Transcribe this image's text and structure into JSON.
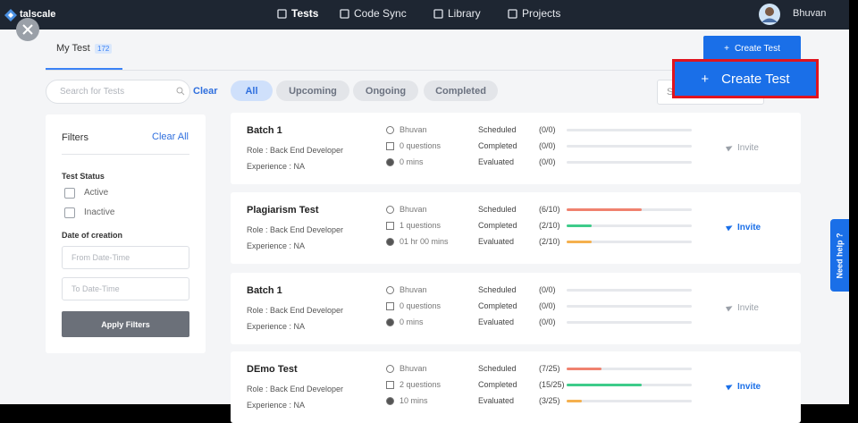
{
  "nav": {
    "brand": "talscale",
    "items": [
      "Tests",
      "Code Sync",
      "Library",
      "Projects"
    ],
    "user": "Bhuvan"
  },
  "tab": {
    "label": "My Test",
    "badge": "172"
  },
  "create_button": "Create Test",
  "highlight_button": "Create Test",
  "search": {
    "placeholder": "Search for Tests",
    "clear": "Clear"
  },
  "chips": [
    "All",
    "Upcoming",
    "Ongoing",
    "Completed"
  ],
  "sort_input": "S",
  "filters": {
    "title": "Filters",
    "clear_all": "Clear All",
    "status_title": "Test Status",
    "status_options": [
      "Active",
      "Inactive"
    ],
    "date_title": "Date of creation",
    "from_placeholder": "From Date-Time",
    "to_placeholder": "To Date-Time",
    "apply": "Apply Filters"
  },
  "tests": [
    {
      "name": "Batch 1",
      "role": "Role : Back End Developer",
      "experience": "Experience : NA",
      "owner": "Bhuvan",
      "questions": "0 questions",
      "duration": "0 mins",
      "stats": [
        {
          "name": "Scheduled",
          "label": "(0/0)",
          "count": 0,
          "total": 0
        },
        {
          "name": "Completed",
          "label": "(0/0)",
          "count": 0,
          "total": 0
        },
        {
          "name": "Evaluated",
          "label": "(0/0)",
          "count": 0,
          "total": 0
        }
      ],
      "invite": "Invite",
      "active": false
    },
    {
      "name": "Plagiarism Test",
      "role": "Role : Back End Developer",
      "experience": "Experience : NA",
      "owner": "Bhuvan",
      "questions": "1 questions",
      "duration": "01 hr 00 mins",
      "stats": [
        {
          "name": "Scheduled",
          "label": "(6/10)",
          "count": 6,
          "total": 10
        },
        {
          "name": "Completed",
          "label": "(2/10)",
          "count": 2,
          "total": 10
        },
        {
          "name": "Evaluated",
          "label": "(2/10)",
          "count": 2,
          "total": 10
        }
      ],
      "invite": "Invite",
      "active": true
    },
    {
      "name": "Batch 1",
      "role": "Role : Back End Developer",
      "experience": "Experience : NA",
      "owner": "Bhuvan",
      "questions": "0 questions",
      "duration": "0 mins",
      "stats": [
        {
          "name": "Scheduled",
          "label": "(0/0)",
          "count": 0,
          "total": 0
        },
        {
          "name": "Completed",
          "label": "(0/0)",
          "count": 0,
          "total": 0
        },
        {
          "name": "Evaluated",
          "label": "(0/0)",
          "count": 0,
          "total": 0
        }
      ],
      "invite": "Invite",
      "active": false
    },
    {
      "name": "DEmo Test",
      "role": "Role : Back End Developer",
      "experience": "Experience : NA",
      "owner": "Bhuvan",
      "questions": "2 questions",
      "duration": "10 mins",
      "stats": [
        {
          "name": "Scheduled",
          "label": "(7/25)",
          "count": 7,
          "total": 25
        },
        {
          "name": "Completed",
          "label": "(15/25)",
          "count": 15,
          "total": 25
        },
        {
          "name": "Evaluated",
          "label": "(3/25)",
          "count": 3,
          "total": 25
        }
      ],
      "invite": "Invite",
      "active": true
    }
  ],
  "help": "Need help ?"
}
